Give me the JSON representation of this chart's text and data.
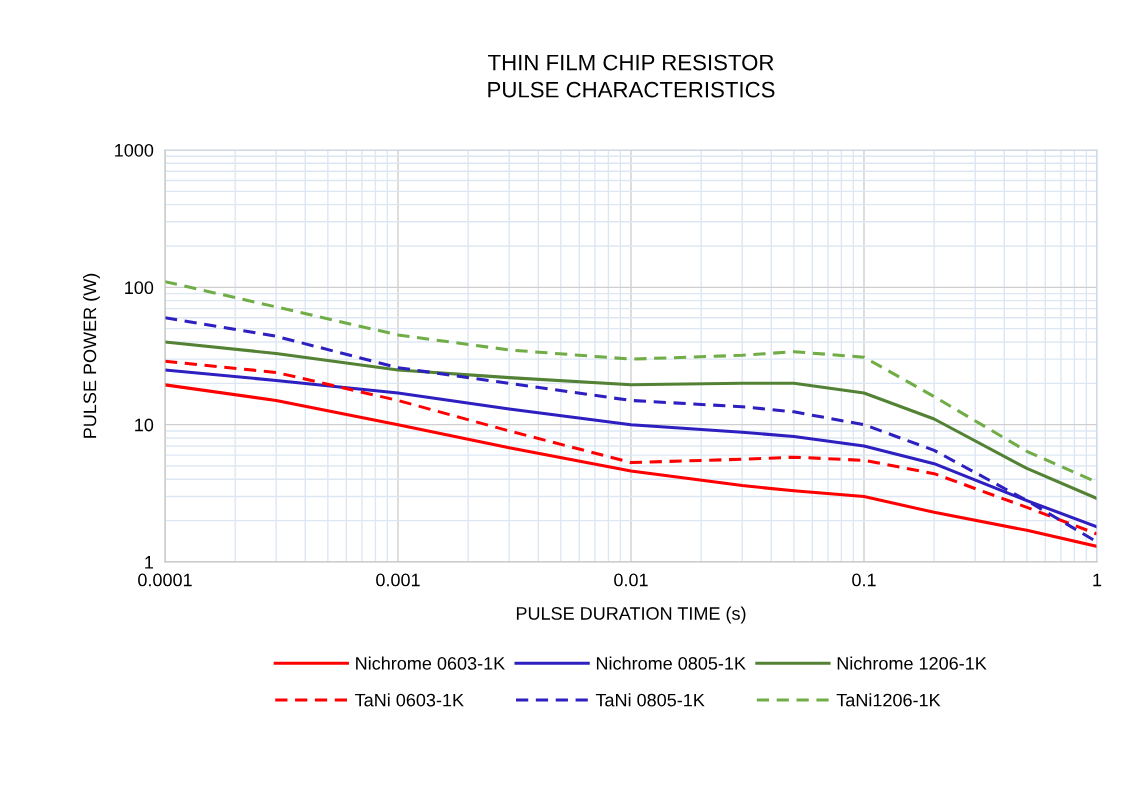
{
  "chart_data": {
    "type": "line",
    "title": "THIN FILM CHIP RESISTOR\nPULSE CHARACTERISTICS",
    "xlabel": "PULSE DURATION TIME (s)",
    "ylabel": "PULSE POWER (W)",
    "log": "xy",
    "grid": true,
    "legend": "bottom",
    "xlim": [
      0.0001,
      1
    ],
    "xticks": [
      0.0001,
      0.001,
      0.01,
      0.1,
      1
    ],
    "ylim": [
      1,
      1000
    ],
    "yticks": [
      1,
      10,
      100,
      1000
    ],
    "x": [
      0.0001,
      0.0003,
      0.001,
      0.003,
      0.01,
      0.03,
      0.05,
      0.1,
      0.2,
      0.5,
      1
    ],
    "series": [
      {
        "name": "Nichrome 0603-1K",
        "color": "#ff0000",
        "line_style": "solid",
        "values": [
          19.5,
          15,
          10,
          6.8,
          4.6,
          3.6,
          3.3,
          3.0,
          2.3,
          1.7,
          1.3
        ]
      },
      {
        "name": "Nichrome 0805-1K",
        "color": "#2e1fc0",
        "line_style": "solid",
        "values": [
          25,
          21,
          17,
          13,
          10,
          8.8,
          8.2,
          7,
          5.2,
          2.8,
          1.8
        ]
      },
      {
        "name": "Nichrome 1206-1K",
        "color": "#548235",
        "line_style": "solid",
        "values": [
          40,
          33,
          25,
          22,
          19.5,
          20,
          20,
          17,
          11,
          4.8,
          2.9
        ]
      },
      {
        "name": "TaNi 0603-1K",
        "color": "#ff0000",
        "line_style": "dashed",
        "values": [
          29,
          24,
          15,
          9,
          5.3,
          5.6,
          5.8,
          5.5,
          4.4,
          2.5,
          1.6
        ]
      },
      {
        "name": "TaNi 0805-1K",
        "color": "#2e1fc0",
        "line_style": "dashed",
        "values": [
          60,
          44,
          26,
          20,
          15,
          13.5,
          12.4,
          10,
          6.5,
          2.8,
          1.4
        ]
      },
      {
        "name": "TaNi1206-1K",
        "color": "#70ad47",
        "line_style": "dashed",
        "values": [
          110,
          72,
          45,
          35,
          30,
          32,
          34,
          31,
          16,
          6.4,
          3.8
        ]
      }
    ]
  }
}
